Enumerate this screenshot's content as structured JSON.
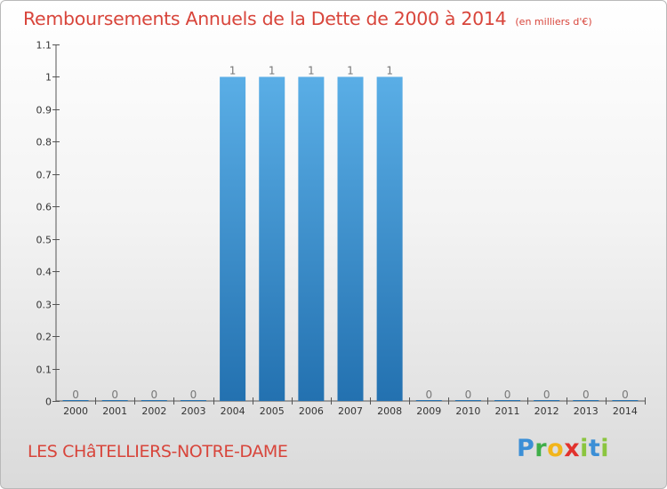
{
  "chart_data": {
    "type": "bar",
    "title": "Remboursements Annuels de la Dette de 2000 à 2014",
    "subtitle": "(en milliers d'€)",
    "categories": [
      "2000",
      "2001",
      "2002",
      "2003",
      "2004",
      "2005",
      "2006",
      "2007",
      "2008",
      "2009",
      "2010",
      "2011",
      "2012",
      "2013",
      "2014"
    ],
    "values": [
      0,
      0,
      0,
      0,
      1,
      1,
      1,
      1,
      1,
      0,
      0,
      0,
      0,
      0,
      0
    ],
    "data_labels": [
      "0",
      "0",
      "0",
      "0",
      "1",
      "1",
      "1",
      "1",
      "1",
      "0",
      "0",
      "0",
      "0",
      "0",
      "0"
    ],
    "ylim": [
      0,
      1.1
    ],
    "yticks": [
      0,
      0.1,
      0.2,
      0.3,
      0.4,
      0.5,
      0.6,
      0.7,
      0.8,
      0.9,
      1,
      1.1
    ],
    "ytick_labels": [
      "0",
      "0.1",
      "0.2",
      "0.3",
      "0.4",
      "0.5",
      "0.6",
      "0.7",
      "0.8",
      "0.9",
      "1",
      "1.1"
    ],
    "xlabel": "",
    "ylabel": "",
    "grid": false,
    "bar_color_top": "#5aaee6",
    "bar_color_bottom": "#2371b0"
  },
  "footer": {
    "commune": "LES CHâTELLIERS-NOTRE-DAME",
    "logo": {
      "text": "Proxiti",
      "letters": [
        {
          "ch": "P",
          "color": "#3b8fd6"
        },
        {
          "ch": "r",
          "color": "#3fae49"
        },
        {
          "ch": "o",
          "color": "#f2b51b"
        },
        {
          "ch": "x",
          "color": "#e2322d"
        },
        {
          "ch": "i",
          "color": "#8bc53f"
        },
        {
          "ch": "t",
          "color": "#3b8fd6"
        },
        {
          "ch": "i",
          "color": "#8bc53f"
        }
      ]
    }
  }
}
